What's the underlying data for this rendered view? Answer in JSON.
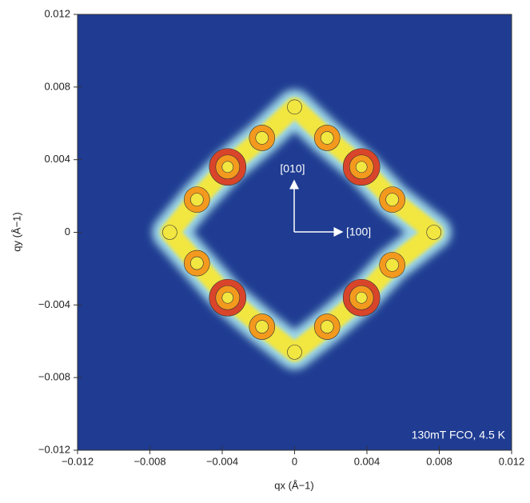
{
  "chart_data": {
    "type": "contour",
    "x_label": "qx (Å−1)",
    "y_label": "qy (Å−1)",
    "annotations": [
      "[010]",
      "[100]",
      "130mT FCO, 4.5 K"
    ],
    "xlim": [
      -0.012,
      0.012
    ],
    "ylim": [
      -0.012,
      0.012
    ],
    "xticks": [
      {
        "value": -0.012,
        "label": "−0.012"
      },
      {
        "value": -0.008,
        "label": "−0.008"
      },
      {
        "value": -0.004,
        "label": "−0.004"
      },
      0,
      0.004,
      0.008,
      0.012
    ],
    "yticks": [
      {
        "value": -0.012,
        "label": "−0.012"
      },
      {
        "value": -0.008,
        "label": "−0.008"
      },
      {
        "value": -0.004,
        "label": "−0.004"
      },
      0,
      0.004,
      0.008,
      0.012
    ],
    "background": "#1f3c92",
    "level_colors": [
      "#9fd8e6",
      "#f2e640",
      "#f39a1e",
      "#d9452a"
    ],
    "peaks": {
      "x": [
        0,
        0.0018,
        0.0037,
        0.0054,
        0.0077,
        0.0054,
        0.0037,
        0.0018,
        0,
        -0.0018,
        -0.0037,
        -0.0054,
        -0.0069,
        -0.0054,
        -0.0037,
        -0.0018
      ],
      "y": [
        0.0069,
        0.0052,
        0.0036,
        0.0018,
        0,
        -0.0018,
        -0.0036,
        -0.0052,
        -0.0066,
        -0.0052,
        -0.0036,
        -0.0017,
        0,
        0.0018,
        0.0036,
        0.0052
      ],
      "intensity": [
        1,
        2,
        3,
        2,
        1,
        2,
        3,
        2,
        1,
        2,
        3,
        2,
        1,
        2,
        3,
        2
      ]
    }
  }
}
